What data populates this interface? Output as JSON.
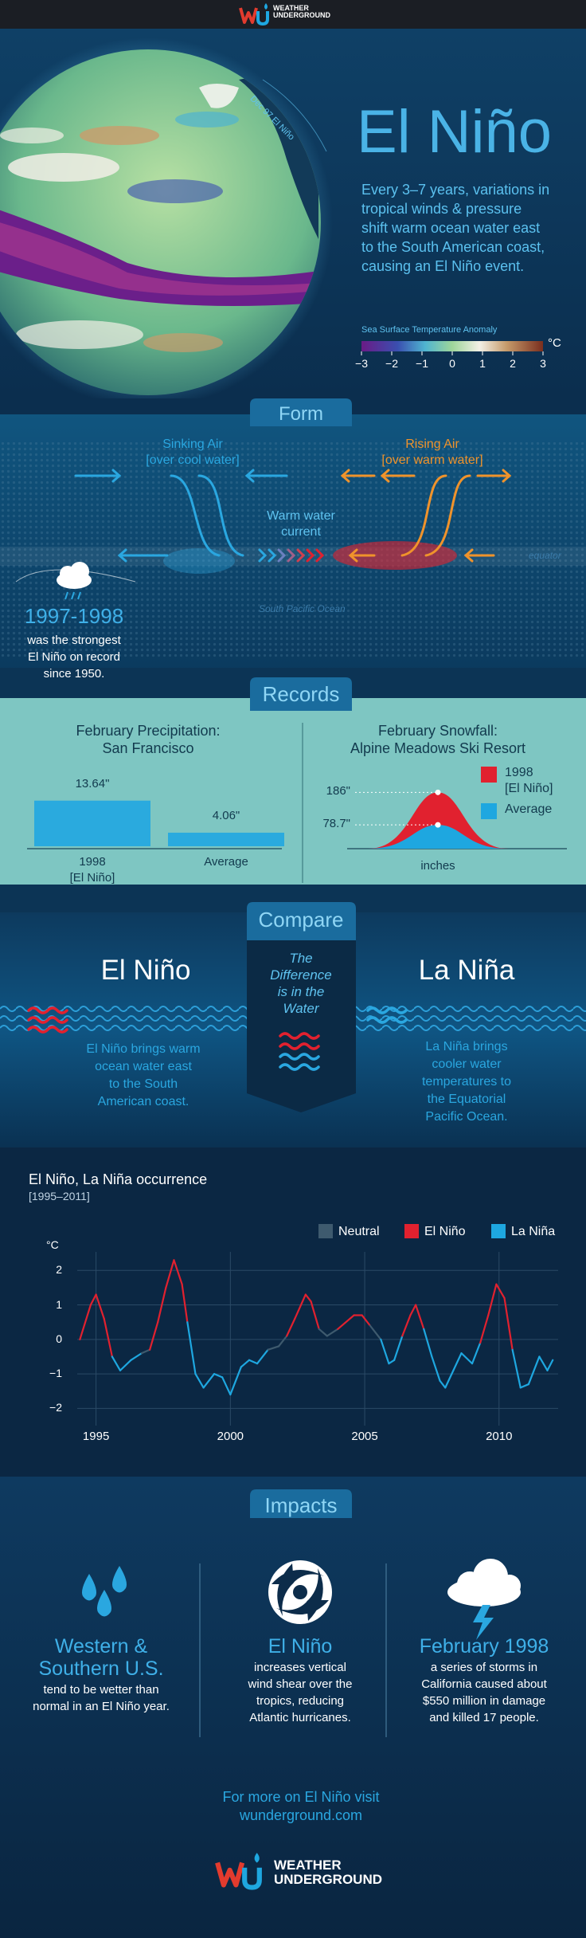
{
  "header": {
    "logo": "WEATHER\nUNDERGROUND"
  },
  "hero": {
    "globe_label": "Dec 97 El Niño",
    "title": "El Niño",
    "text": "Every 3–7 years, variations in\ntropical winds & pressure\nshift warm ocean water east\nto the South American coast,\ncausing an El Niño event.",
    "scale": {
      "title": "Sea Surface Temperature Anomaly",
      "unit": "°C",
      "range": [
        -3,
        3
      ],
      "ticks": [
        {
          "value": -3,
          "label": "−3"
        },
        {
          "value": -2,
          "label": "−2"
        },
        {
          "value": -1,
          "label": "−1"
        },
        0,
        1,
        2,
        3
      ]
    }
  },
  "form": {
    "heading": "Form",
    "sinking": "Sinking Air\n[over cool water]",
    "rising": "Rising Air\n[over warm water]",
    "current": "Warm water\ncurrent",
    "equator": "equator",
    "ocean": "South Pacific Ocean",
    "years": "1997-1998",
    "years_text": "was the strongest\nEl Niño on record\nsince 1950."
  },
  "records": {
    "heading": "Records",
    "precipitation": {
      "type": "bar",
      "title": "February Precipitation:\nSan Francisco",
      "categories": [
        "1998\n[El Niño]",
        "Average"
      ],
      "values": [
        13.64,
        4.06
      ],
      "value_labels": [
        "13.64\"",
        "4.06\""
      ],
      "color": "#2aaade"
    },
    "snowfall": {
      "type": "area",
      "title": "February Snowfall:\nAlpine Meadows Ski Resort",
      "series": [
        {
          "name": "1998\n[El Niño]",
          "color": "#e1212f",
          "values": [
            186
          ],
          "value_labels": [
            "186\""
          ]
        },
        {
          "name": "Average",
          "color": "#1ea7e0",
          "values": [
            78.7
          ],
          "value_labels": [
            "78.7\""
          ]
        }
      ],
      "xlabel": "inches"
    }
  },
  "compare": {
    "heading": "Compare",
    "left_title": "El Niño",
    "right_title": "La Niña",
    "center": "The\nDifference\nis in the\nWater",
    "left_text": "El Niño brings warm\nocean water east\nto the South\nAmerican coast.",
    "right_text": "La Niña brings\ncooler water\ntemperatures to\nthe Equatorial\nPacific Ocean."
  },
  "chart_data": {
    "type": "line",
    "title": "El Niño, La Niña occurrence",
    "subtitle": "[1995–2011]",
    "ylabel": "°C",
    "xlim": [
      1994.3,
      2012.2
    ],
    "xticks": [
      1995,
      2000,
      2005,
      2010
    ],
    "ylim": [
      -2.5,
      3
    ],
    "yticks": [
      2,
      1,
      0,
      {
        "value": -1,
        "label": "−1"
      },
      {
        "value": -2,
        "label": "−2"
      }
    ],
    "grid": true,
    "x": [
      1994.4,
      1994.8,
      1995.0,
      1995.3,
      1995.6,
      1995.9,
      1996.3,
      1996.7,
      1997.0,
      1997.3,
      1997.6,
      1997.9,
      1998.2,
      1998.4,
      1998.7,
      1999.0,
      1999.4,
      1999.7,
      2000.0,
      2000.4,
      2000.7,
      2001.0,
      2001.4,
      2001.8,
      2002.1,
      2002.4,
      2002.8,
      2003.0,
      2003.3,
      2003.6,
      2004.0,
      2004.6,
      2004.9,
      2005.2,
      2005.6,
      2005.9,
      2006.1,
      2006.4,
      2006.7,
      2006.9,
      2007.2,
      2007.5,
      2007.8,
      2008.0,
      2008.3,
      2008.6,
      2009.0,
      2009.3,
      2009.6,
      2009.9,
      2010.2,
      2010.5,
      2010.8,
      2011.1,
      2011.5,
      2011.8,
      2012.0
    ],
    "series": [
      {
        "name": "Neutral",
        "color": "#3e5a6e",
        "values": [
          0.0,
          null,
          null,
          null,
          null,
          null,
          null,
          -0.4,
          -0.3,
          null,
          null,
          null,
          null,
          null,
          null,
          null,
          null,
          null,
          null,
          null,
          null,
          null,
          -0.3,
          -0.2,
          0.1,
          null,
          null,
          null,
          0.3,
          0.1,
          0.3,
          null,
          null,
          0.4,
          0.0,
          null,
          null,
          0.1,
          null,
          null,
          0.3,
          null,
          null,
          null,
          null,
          -0.4,
          null,
          -0.1,
          null,
          null,
          null,
          -0.3,
          null,
          null,
          null,
          null,
          null
        ]
      },
      {
        "name": "El Niño",
        "color": "#e1212f",
        "values": [
          null,
          1.0,
          1.3,
          0.6,
          null,
          null,
          null,
          null,
          null,
          0.5,
          1.5,
          2.3,
          1.6,
          0.5,
          null,
          null,
          null,
          null,
          null,
          null,
          null,
          null,
          null,
          null,
          null,
          0.6,
          1.3,
          1.1,
          null,
          null,
          null,
          0.7,
          0.7,
          null,
          null,
          null,
          null,
          null,
          0.7,
          1.0,
          null,
          null,
          null,
          null,
          null,
          null,
          null,
          null,
          0.7,
          1.6,
          1.2,
          null,
          null,
          null,
          null,
          null,
          null
        ]
      },
      {
        "name": "La Niña",
        "color": "#1ea7e0",
        "values": [
          null,
          null,
          null,
          null,
          -0.5,
          -0.9,
          -0.6,
          null,
          null,
          null,
          null,
          null,
          null,
          null,
          -1.0,
          -1.4,
          -1.0,
          -1.1,
          -1.6,
          -0.8,
          -0.6,
          -0.7,
          null,
          null,
          null,
          null,
          null,
          null,
          null,
          null,
          null,
          null,
          null,
          null,
          null,
          -0.7,
          -0.6,
          null,
          null,
          null,
          null,
          -0.5,
          -1.2,
          -1.4,
          -0.9,
          null,
          -0.7,
          null,
          null,
          null,
          null,
          null,
          -1.4,
          -1.3,
          -0.5,
          -0.9,
          -0.6
        ]
      }
    ]
  },
  "impacts": {
    "heading": "Impacts",
    "items": [
      {
        "title": "Western &\nSouthern U.S.",
        "text": "tend to be wetter than\nnormal in an El Niño year."
      },
      {
        "title": "El Niño",
        "text": "increases vertical\nwind shear over the\ntropics, reducing\nAtlantic hurricanes."
      },
      {
        "title": "February 1998",
        "text": "a series of storms in\nCalifornia caused about\n$550 million in damage\nand killed 17 people."
      }
    ]
  },
  "footer": {
    "text": "For more on El Niño visit\nwunderground.com",
    "logo": "WEATHER\nUNDERGROUND"
  }
}
